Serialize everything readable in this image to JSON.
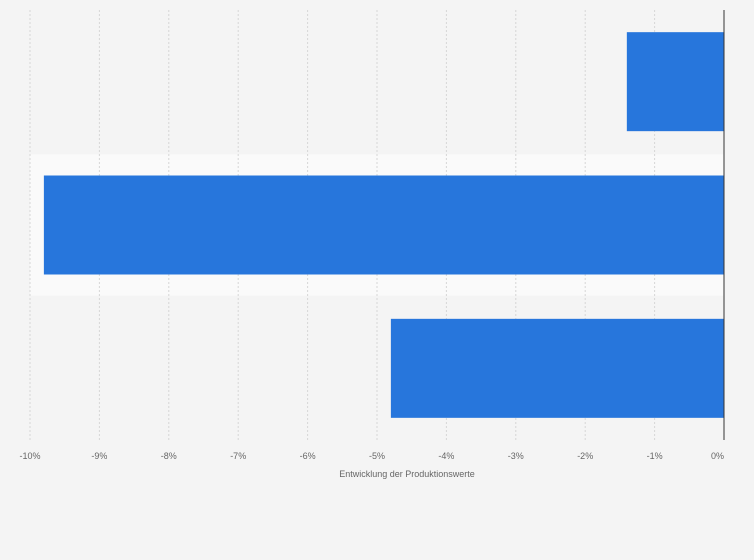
{
  "chart_data": {
    "type": "bar",
    "orientation": "horizontal",
    "categories": [
      "",
      "",
      ""
    ],
    "values": [
      -1.4,
      -9.8,
      -4.8
    ],
    "xlim": [
      -10,
      0
    ],
    "x_ticks": [
      -10,
      -9,
      -8,
      -7,
      -6,
      -5,
      -4,
      -3,
      -2,
      -1,
      0
    ],
    "x_tick_labels": [
      "-10%",
      "-9%",
      "-8%",
      "-7%",
      "-6%",
      "-5%",
      "-4%",
      "-3%",
      "-2%",
      "-1%",
      "0%"
    ],
    "xlabel": "Entwicklung der Produktionswerte",
    "ylabel": "",
    "grid": "vertical dashed",
    "bar_color": "#2776dc",
    "band_color": "#fafafa"
  }
}
